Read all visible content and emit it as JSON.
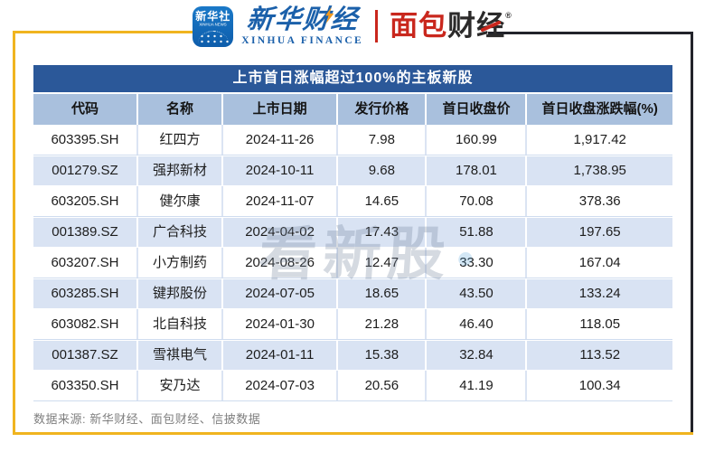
{
  "brand": {
    "icon_cn": "新华社",
    "icon_en": "XINHUA NEWS",
    "finance_cn": "新华财经",
    "finance_en": "XINHUA FINANCE",
    "mianbao_red": "面包",
    "mianbao_dark": "财经",
    "mianbao_reg": "®",
    "colors": {
      "finance_blue": "#1b60aa",
      "mianbao_red": "#c9271d",
      "frame_gold": "#f0b41f",
      "frame_dark": "#22232a",
      "title_bar_blue": "#2b5899",
      "header_row_blue": "#a9c0dd",
      "row_alt_blue": "#d9e3f3"
    }
  },
  "chart_data": {
    "type": "table",
    "title": "上市首日涨幅超过100%的主板新股",
    "columns": [
      "代码",
      "名称",
      "上市日期",
      "发行价格",
      "首日收盘价",
      "首日收盘涨跌幅(%)"
    ],
    "rows": [
      [
        "603395.SH",
        "红四方",
        "2024-11-26",
        "7.98",
        "160.99",
        "1,917.42"
      ],
      [
        "001279.SZ",
        "强邦新材",
        "2024-10-11",
        "9.68",
        "178.01",
        "1,738.95"
      ],
      [
        "603205.SH",
        "健尔康",
        "2024-11-07",
        "14.65",
        "70.08",
        "378.36"
      ],
      [
        "001389.SZ",
        "广合科技",
        "2024-04-02",
        "17.43",
        "51.88",
        "197.65"
      ],
      [
        "603207.SH",
        "小方制药",
        "2024-08-26",
        "12.47",
        "33.30",
        "167.04"
      ],
      [
        "603285.SH",
        "键邦股份",
        "2024-07-05",
        "18.65",
        "43.50",
        "133.24"
      ],
      [
        "603082.SH",
        "北自科技",
        "2024-01-30",
        "21.28",
        "46.40",
        "118.05"
      ],
      [
        "001387.SZ",
        "雪祺电气",
        "2024-01-11",
        "15.38",
        "32.84",
        "113.52"
      ],
      [
        "603350.SH",
        "安乃达",
        "2024-07-03",
        "20.56",
        "41.19",
        "100.34"
      ]
    ]
  },
  "watermark": {
    "text": "看新股"
  },
  "footer": {
    "text": "数据来源: 新华财经、面包财经、信披数据"
  }
}
